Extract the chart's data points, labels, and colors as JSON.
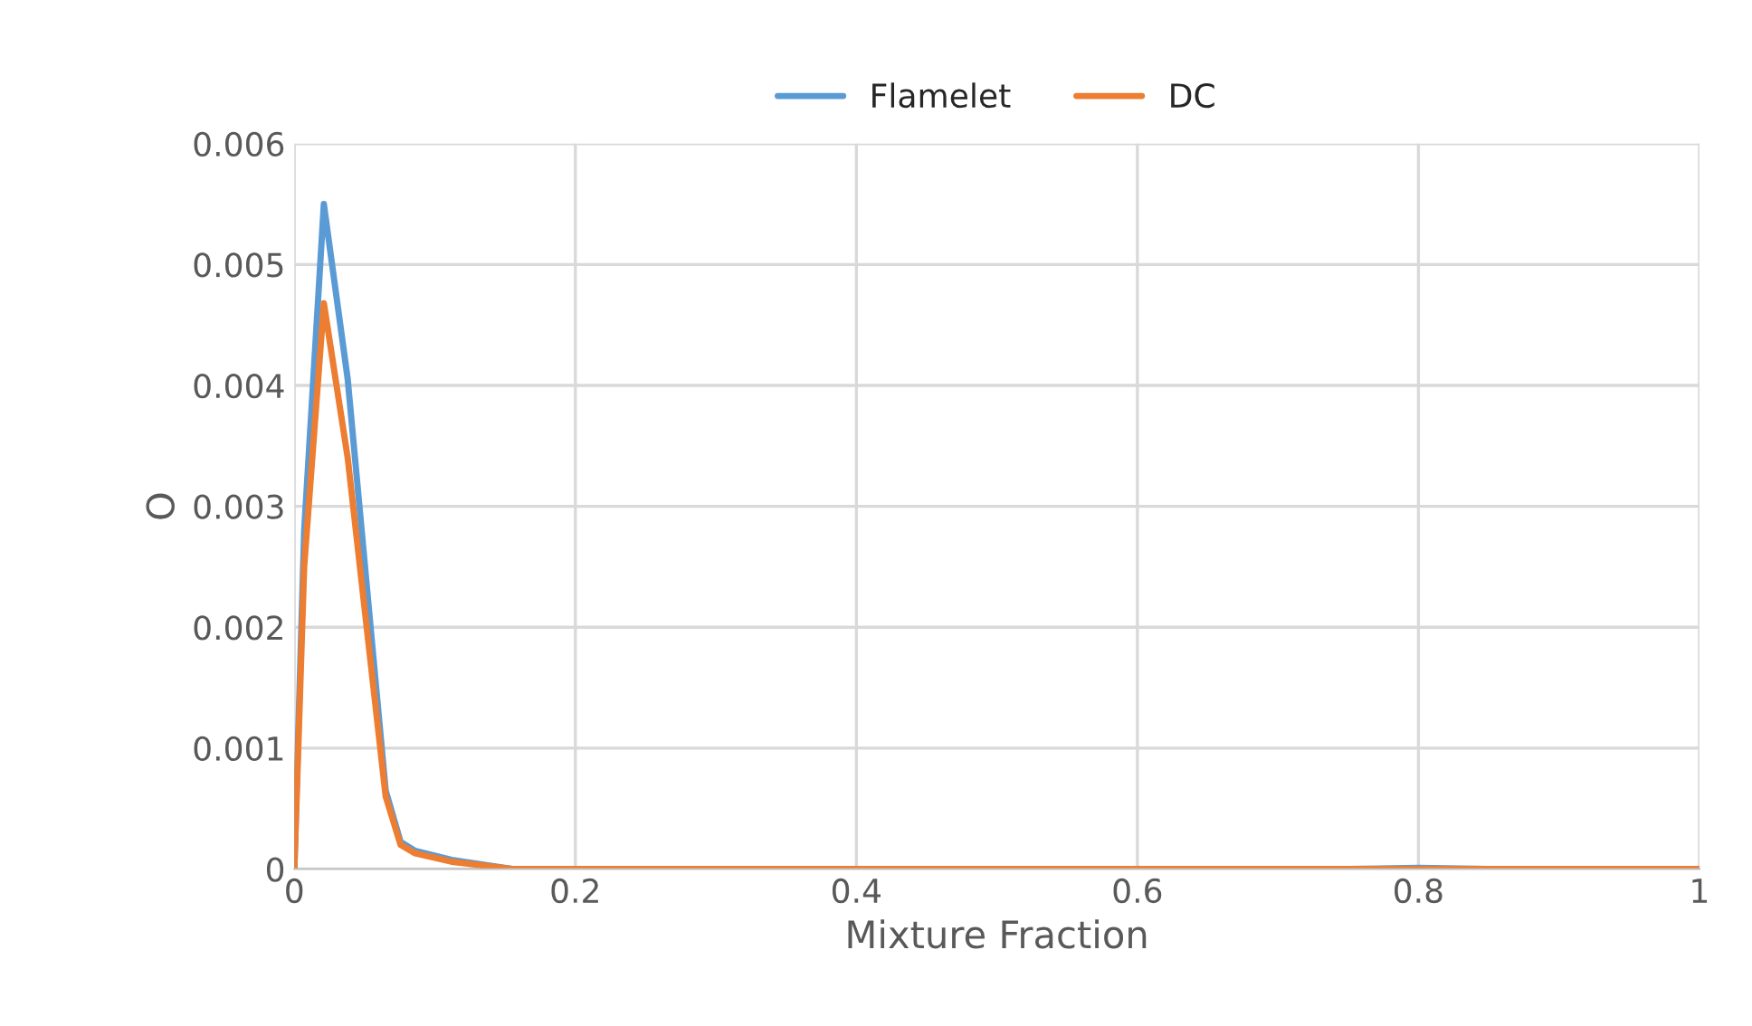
{
  "chart_data": {
    "type": "line",
    "xlabel": "Mixture Fraction",
    "ylabel": "O",
    "xlim": [
      0,
      1
    ],
    "xticks": [
      0,
      0.2,
      0.4,
      0.6,
      0.8,
      1
    ],
    "ylim": [
      0,
      0.006
    ],
    "yticks": [
      0,
      0.001,
      0.002,
      0.003,
      0.004,
      0.005,
      0.006
    ],
    "grid": true,
    "legend": "top",
    "line_style": "solid",
    "series": [
      {
        "name": "Flamelet",
        "color": "#5b9bd5",
        "x": [
          0,
          0.007,
          0.021,
          0.038,
          0.065,
          0.0756,
          0.086,
          0.112,
          0.155,
          0.3,
          0.75,
          0.8,
          0.85,
          1
        ],
        "values": [
          0,
          0.0028,
          0.0055,
          0.00405,
          0.00065,
          0.000225,
          0.00015,
          7.5e-05,
          0,
          0,
          0,
          1e-05,
          0,
          0
        ]
      },
      {
        "name": "DC",
        "color": "#ed7d31",
        "x": [
          0,
          0.007,
          0.021,
          0.038,
          0.065,
          0.0756,
          0.086,
          0.112,
          0.155,
          0.3,
          0.75,
          0.8,
          0.85,
          1
        ],
        "values": [
          0,
          0.0025,
          0.00468,
          0.0034,
          0.0006,
          0.0002,
          0.00013,
          6e-05,
          0,
          0,
          0,
          0,
          0,
          0
        ]
      }
    ]
  }
}
